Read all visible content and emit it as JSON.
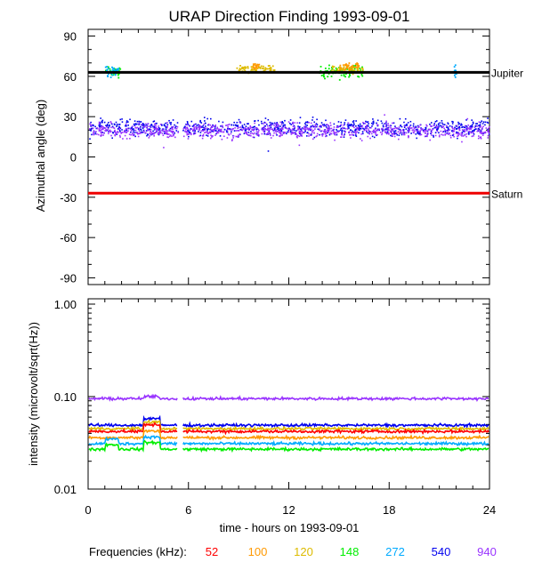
{
  "title": "URAP Direction Finding  1993-09-01",
  "xlabel": "time - hours on 1993-09-01",
  "xticks": [
    "0",
    "6",
    "12",
    "18",
    "24"
  ],
  "freq_label": "Frequencies (kHz):",
  "frequencies": [
    {
      "label": "52",
      "color": "#ff0000"
    },
    {
      "label": "100",
      "color": "#ff9900"
    },
    {
      "label": "120",
      "color": "#ddbb00"
    },
    {
      "label": "148",
      "color": "#00ee00"
    },
    {
      "label": "272",
      "color": "#00aaff"
    },
    {
      "label": "540",
      "color": "#0000ee"
    },
    {
      "label": "940",
      "color": "#9933ff"
    }
  ],
  "chart_data": [
    {
      "type": "scatter",
      "ylabel": "Azimuthal angle (deg)",
      "xlim": [
        0,
        24
      ],
      "ylim": [
        -95,
        95
      ],
      "yticks": [
        "90",
        "60",
        "30",
        "0",
        "-30",
        "-60",
        "-90"
      ],
      "ytick_values": [
        90,
        60,
        30,
        0,
        -30,
        -60,
        -90
      ],
      "reference_lines": [
        {
          "label": "Jupiter",
          "value": 63,
          "color": "#000000"
        },
        {
          "label": "Saturn",
          "value": -27,
          "color": "#ee0000"
        }
      ],
      "data_gap_hours": [
        5.35,
        5.65
      ],
      "series": [
        {
          "freq": "540",
          "center": 22,
          "spread": 9,
          "color": "#0000ee"
        },
        {
          "freq": "940",
          "center": 20,
          "spread": 8,
          "color": "#9933ff"
        },
        {
          "freq": "148",
          "center": 64,
          "spread": 7,
          "color": "#00ee00",
          "bursts": [
            [
              1.0,
              1.9
            ],
            [
              13.8,
              16.4
            ]
          ]
        },
        {
          "freq": "272",
          "center": 64,
          "spread": 6,
          "color": "#00aaff",
          "bursts": [
            [
              1.0,
              1.9
            ],
            [
              21.8,
              22.0
            ]
          ]
        },
        {
          "freq": "120",
          "center": 66,
          "spread": 5,
          "color": "#ddbb00",
          "bursts": [
            [
              8.8,
              11.2
            ],
            [
              14.5,
              16.4
            ]
          ]
        },
        {
          "freq": "100",
          "center": 68,
          "spread": 4,
          "color": "#ff9900",
          "bursts": [
            [
              9.8,
              10.2
            ],
            [
              15.0,
              16.2
            ]
          ]
        }
      ]
    },
    {
      "type": "line",
      "ylabel": "intensity (microvolt/sqrt(Hz))",
      "yscale": "log",
      "xlim": [
        0,
        24
      ],
      "ylim": [
        0.01,
        1.0
      ],
      "yticks": [
        "1.00",
        "0.10",
        "0.01"
      ],
      "ytick_values": [
        1.0,
        0.1,
        0.01
      ],
      "data_gap_hours": [
        5.35,
        5.65
      ],
      "series": [
        {
          "freq": "940",
          "value": 0.095,
          "color": "#9933ff"
        },
        {
          "freq": "540",
          "value": 0.049,
          "color": "#0000ee"
        },
        {
          "freq": "120",
          "value": 0.045,
          "color": "#ddbb00"
        },
        {
          "freq": "52",
          "value": 0.042,
          "color": "#ff0000"
        },
        {
          "freq": "100",
          "value": 0.036,
          "color": "#ff9900"
        },
        {
          "freq": "272",
          "value": 0.031,
          "color": "#00aaff"
        },
        {
          "freq": "148",
          "value": 0.027,
          "color": "#00ee00"
        }
      ]
    }
  ]
}
